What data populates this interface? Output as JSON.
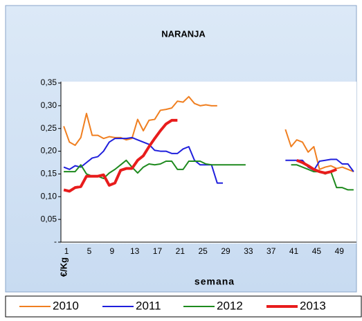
{
  "chart_data": {
    "type": "line",
    "title": "NARANJA",
    "x_label": "semana",
    "y_label": "€/Kg",
    "categories": [
      1,
      null,
      null,
      null,
      5,
      null,
      null,
      null,
      9,
      null,
      null,
      null,
      13,
      null,
      null,
      null,
      17,
      null,
      null,
      null,
      21,
      null,
      null,
      null,
      25,
      null,
      null,
      null,
      29,
      null,
      null,
      null,
      33,
      null,
      null,
      null,
      37,
      null,
      null,
      null,
      41,
      null,
      null,
      null,
      45,
      null,
      null,
      null,
      49,
      null,
      null,
      null
    ],
    "ylim": [
      0,
      0.35
    ],
    "yticks": [
      {
        "value": 0,
        "label": "-"
      },
      {
        "value": 0.05,
        "label": "0,05"
      },
      {
        "value": 0.1,
        "label": "0,10"
      },
      {
        "value": 0.15,
        "label": "0,15"
      },
      {
        "value": 0.2,
        "label": "0,20"
      },
      {
        "value": 0.25,
        "label": "0,25"
      },
      {
        "value": 0.3,
        "label": "0,30"
      },
      {
        "value": 0.35,
        "label": "0,35"
      }
    ],
    "grid": false,
    "legend": "bottom",
    "series": [
      {
        "name": "2010",
        "color": "#f07f20",
        "values": [
          0.255,
          0.22,
          0.213,
          0.23,
          0.283,
          0.235,
          0.235,
          0.228,
          0.232,
          0.23,
          0.23,
          0.225,
          0.228,
          0.27,
          0.245,
          0.268,
          0.27,
          0.29,
          0.292,
          0.295,
          0.31,
          0.308,
          0.32,
          0.305,
          0.3,
          0.302,
          0.3,
          0.3,
          null,
          null,
          null,
          null,
          null,
          null,
          null,
          null,
          null,
          null,
          null,
          0.248,
          0.21,
          0.225,
          0.22,
          0.198,
          0.21,
          0.16,
          0.165,
          0.168,
          0.162,
          0.165,
          0.16,
          0.155
        ]
      },
      {
        "name": "2011",
        "color": "#1f1fdc",
        "values": [
          0.165,
          0.16,
          0.168,
          0.165,
          0.175,
          0.185,
          0.188,
          0.2,
          0.22,
          0.228,
          0.228,
          0.228,
          0.23,
          0.225,
          0.22,
          0.215,
          0.202,
          0.2,
          0.2,
          0.195,
          0.195,
          0.205,
          0.21,
          0.18,
          0.17,
          0.17,
          0.17,
          0.13,
          0.13,
          null,
          null,
          null,
          null,
          null,
          null,
          null,
          null,
          null,
          null,
          0.18,
          0.18,
          0.18,
          0.18,
          0.165,
          0.158,
          0.178,
          0.18,
          0.182,
          0.182,
          0.172,
          0.172,
          0.155
        ]
      },
      {
        "name": "2012",
        "color": "#1e8a1e",
        "values": [
          0.155,
          0.155,
          0.155,
          0.17,
          0.15,
          0.145,
          0.145,
          0.14,
          0.152,
          0.16,
          0.17,
          0.18,
          0.165,
          0.152,
          0.165,
          0.172,
          0.17,
          0.172,
          0.178,
          0.178,
          0.16,
          0.16,
          0.178,
          0.178,
          0.178,
          0.172,
          0.17,
          0.17,
          0.17,
          0.17,
          0.17,
          0.17,
          0.17,
          null,
          null,
          null,
          null,
          null,
          null,
          null,
          0.17,
          0.17,
          0.165,
          0.16,
          0.155,
          0.155,
          0.15,
          0.155,
          0.12,
          0.12,
          0.115,
          0.115
        ]
      },
      {
        "name": "2013",
        "color": "#e81c1c",
        "width": 4,
        "values": [
          0.115,
          0.112,
          0.12,
          0.122,
          0.145,
          0.145,
          0.145,
          0.148,
          0.125,
          0.13,
          0.158,
          0.162,
          0.162,
          0.18,
          0.19,
          0.21,
          0.228,
          0.245,
          0.26,
          0.268,
          0.268,
          null,
          null,
          null,
          null,
          null,
          null,
          null,
          null,
          null,
          null,
          null,
          null,
          null,
          null,
          null,
          null,
          null,
          null,
          null,
          null,
          0.18,
          0.175,
          0.168,
          0.16,
          0.155,
          0.152,
          0.155,
          0.16,
          null,
          null,
          null
        ]
      }
    ]
  }
}
